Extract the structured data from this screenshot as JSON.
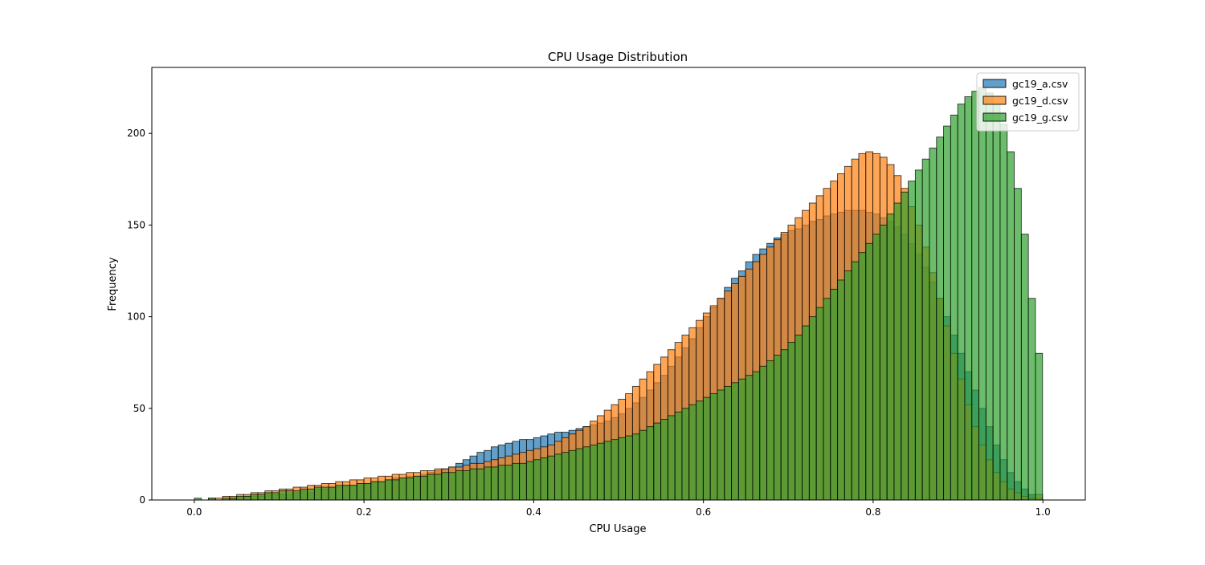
{
  "chart_data": {
    "type": "histogram",
    "title": "CPU Usage Distribution",
    "xlabel": "CPU Usage",
    "ylabel": "Frequency",
    "xlim": [
      -0.05,
      1.05
    ],
    "ylim": [
      0,
      236
    ],
    "xticks": [
      0.0,
      0.2,
      0.4,
      0.6,
      0.8,
      1.0
    ],
    "xtick_labels": [
      "0.0",
      "0.2",
      "0.4",
      "0.6",
      "0.8",
      "1.0"
    ],
    "yticks": [
      0,
      50,
      100,
      150,
      200
    ],
    "ytick_labels": [
      "0",
      "50",
      "100",
      "150",
      "200"
    ],
    "bin_start": 0.0,
    "bin_width": 0.00833,
    "bins": 120,
    "alpha": 0.7,
    "edge_color": "#000000",
    "grid": false,
    "legend_position": "top-right",
    "series": [
      {
        "name": "gc19_a.csv",
        "color": "#1f77b4",
        "values": [
          0,
          0,
          0,
          0,
          0,
          1,
          1,
          2,
          2,
          2,
          3,
          3,
          3,
          3,
          4,
          5,
          4,
          6,
          6,
          7,
          7,
          8,
          8,
          9,
          9,
          10,
          10,
          11,
          12,
          12,
          13,
          13,
          14,
          15,
          16,
          17,
          18,
          20,
          22,
          24,
          26,
          27,
          29,
          30,
          31,
          32,
          33,
          33,
          34,
          35,
          36,
          37,
          37,
          38,
          39,
          40,
          41,
          42,
          43,
          45,
          47,
          50,
          53,
          56,
          60,
          64,
          68,
          73,
          78,
          83,
          88,
          94,
          100,
          105,
          110,
          116,
          121,
          125,
          130,
          134,
          137,
          140,
          143,
          145,
          147,
          148,
          150,
          152,
          153,
          155,
          156,
          157,
          158,
          158,
          158,
          157,
          156,
          154,
          152,
          149,
          145,
          140,
          134,
          127,
          119,
          110,
          100,
          90,
          80,
          70,
          60,
          50,
          40,
          30,
          22,
          15,
          10,
          6,
          3,
          1
        ]
      },
      {
        "name": "gc19_d.csv",
        "color": "#ff7f0e",
        "values": [
          0,
          0,
          1,
          1,
          2,
          2,
          3,
          3,
          4,
          4,
          5,
          5,
          6,
          6,
          7,
          7,
          8,
          8,
          9,
          9,
          10,
          10,
          11,
          11,
          12,
          12,
          13,
          13,
          14,
          14,
          15,
          15,
          16,
          16,
          17,
          17,
          18,
          18,
          19,
          20,
          20,
          21,
          22,
          23,
          24,
          25,
          26,
          27,
          28,
          29,
          30,
          32,
          34,
          36,
          38,
          40,
          43,
          46,
          49,
          52,
          55,
          58,
          62,
          66,
          70,
          74,
          78,
          82,
          86,
          90,
          94,
          98,
          102,
          106,
          110,
          114,
          118,
          122,
          126,
          130,
          134,
          138,
          142,
          146,
          150,
          154,
          158,
          162,
          166,
          170,
          174,
          178,
          182,
          186,
          189,
          190,
          189,
          187,
          183,
          177,
          170,
          160,
          150,
          138,
          124,
          110,
          95,
          80,
          66,
          52,
          40,
          30,
          22,
          15,
          10,
          6,
          4,
          2,
          1,
          3
        ]
      },
      {
        "name": "gc19_g.csv",
        "color": "#2ca02c",
        "values": [
          1,
          0,
          1,
          0,
          1,
          1,
          2,
          2,
          3,
          3,
          4,
          4,
          5,
          5,
          5,
          6,
          6,
          7,
          7,
          7,
          8,
          8,
          8,
          9,
          9,
          10,
          10,
          11,
          11,
          12,
          12,
          13,
          13,
          14,
          14,
          15,
          15,
          16,
          16,
          17,
          17,
          18,
          18,
          19,
          19,
          20,
          20,
          21,
          22,
          23,
          24,
          25,
          26,
          27,
          28,
          29,
          30,
          31,
          32,
          33,
          34,
          35,
          36,
          38,
          40,
          42,
          44,
          46,
          48,
          50,
          52,
          54,
          56,
          58,
          60,
          62,
          64,
          66,
          68,
          70,
          73,
          76,
          79,
          82,
          86,
          90,
          95,
          100,
          105,
          110,
          115,
          120,
          125,
          130,
          135,
          140,
          145,
          150,
          156,
          162,
          168,
          174,
          180,
          186,
          192,
          198,
          204,
          210,
          216,
          220,
          223,
          225,
          222,
          216,
          205,
          190,
          170,
          145,
          110,
          80
        ]
      }
    ]
  }
}
